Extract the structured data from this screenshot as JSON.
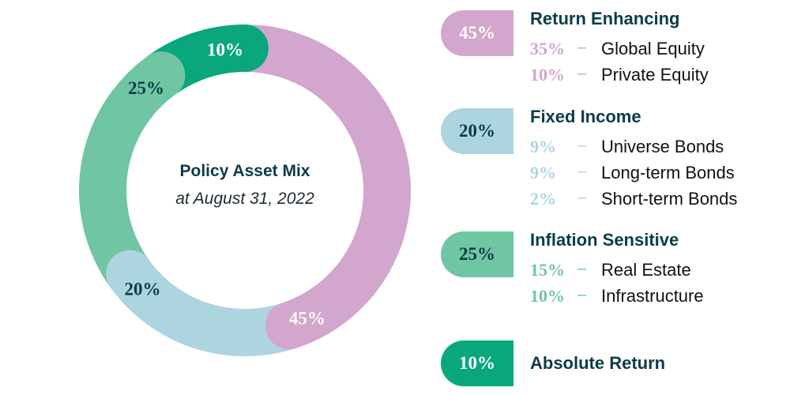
{
  "chart_data": {
    "type": "pie",
    "title": "Policy Asset Mix",
    "subtitle": "at August 31, 2022",
    "slices": [
      {
        "name": "Return Enhancing",
        "value": 45,
        "label": "45%",
        "color": "#d2a6cd",
        "label_color": "#ffffff"
      },
      {
        "name": "Fixed Income",
        "value": 20,
        "label": "20%",
        "color": "#acd5e0",
        "label_color": "#0b3c49"
      },
      {
        "name": "Inflation Sensitive",
        "value": 25,
        "label": "25%",
        "color": "#70c6a2",
        "label_color": "#0b3c49"
      },
      {
        "name": "Absolute Return",
        "value": 10,
        "label": "10%",
        "color": "#0aa77d",
        "label_color": "#ffffff"
      }
    ]
  },
  "legend": [
    {
      "pill": "45%",
      "title": "Return Enhancing",
      "color": "#d2a6cd",
      "text_color": "#ffffff",
      "items": [
        {
          "pct": "35%",
          "dash": "–",
          "name": "Global Equity"
        },
        {
          "pct": "10%",
          "dash": "–",
          "name": "Private Equity"
        }
      ]
    },
    {
      "pill": "20%",
      "title": "Fixed Income",
      "color": "#acd5e0",
      "text_color": "#0b3c49",
      "items": [
        {
          "pct": "9%",
          "dash": "–",
          "name": "Universe Bonds"
        },
        {
          "pct": "9%",
          "dash": "–",
          "name": "Long-term Bonds"
        },
        {
          "pct": "2%",
          "dash": "–",
          "name": "Short-term Bonds"
        }
      ]
    },
    {
      "pill": "25%",
      "title": "Inflation Sensitive",
      "color": "#70c6a2",
      "text_color": "#0b3c49",
      "items": [
        {
          "pct": "15%",
          "dash": "–",
          "name": "Real Estate"
        },
        {
          "pct": "10%",
          "dash": "–",
          "name": "Infrastructure"
        }
      ]
    },
    {
      "pill": "10%",
      "title": "Absolute Return",
      "color": "#0aa77d",
      "text_color": "#ffffff",
      "items": []
    }
  ]
}
